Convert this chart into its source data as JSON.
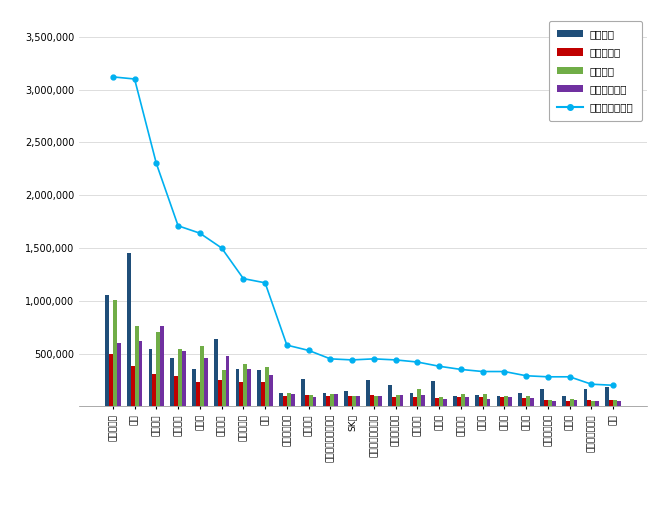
{
  "categories": [
    "힐스테이트",
    "자이",
    "푸르지오",
    "아이파크",
    "래미안",
    "롯데캐슬",
    "한화포레나",
    "디샹",
    "시티스케이프",
    "디에이치",
    "한양수자인디에스틴",
    "SK뷰",
    "한화한양디에스틴",
    "한양디에스틴",
    "호반써밋",
    "우미린",
    "센트레빌",
    "리슈빌",
    "코오롱",
    "데시앙",
    "부산오션시티",
    "스위체",
    "남양미건다구월",
    "위파"
  ],
  "참여지수": [
    1050000,
    1450000,
    540000,
    460000,
    350000,
    640000,
    350000,
    340000,
    130000,
    260000,
    130000,
    150000,
    250000,
    200000,
    130000,
    240000,
    100000,
    110000,
    100000,
    130000,
    160000,
    100000,
    160000,
    180000
  ],
  "미디어지수": [
    500000,
    380000,
    310000,
    290000,
    230000,
    250000,
    235000,
    230000,
    100000,
    105000,
    95000,
    100000,
    105000,
    85000,
    85000,
    80000,
    90000,
    85000,
    85000,
    80000,
    60000,
    55000,
    60000,
    60000
  ],
  "소통지수": [
    1010000,
    760000,
    700000,
    540000,
    575000,
    340000,
    400000,
    370000,
    130000,
    110000,
    115000,
    95000,
    100000,
    105000,
    160000,
    90000,
    115000,
    120000,
    100000,
    95000,
    65000,
    70000,
    55000,
    60000
  ],
  "커뮤니티지수": [
    600000,
    620000,
    760000,
    520000,
    460000,
    480000,
    350000,
    300000,
    120000,
    90000,
    120000,
    95000,
    95000,
    110000,
    110000,
    70000,
    85000,
    70000,
    90000,
    75000,
    55000,
    65000,
    50000,
    50000
  ],
  "브랜드평판지수": [
    3120000,
    3100000,
    2300000,
    1710000,
    1640000,
    1500000,
    1210000,
    1170000,
    580000,
    530000,
    450000,
    440000,
    450000,
    440000,
    420000,
    380000,
    350000,
    330000,
    330000,
    290000,
    280000,
    280000,
    210000,
    200000
  ],
  "bar_colors": [
    "#1f4e79",
    "#c00000",
    "#70ad47",
    "#7030a0"
  ],
  "line_color": "#00b0f0",
  "background_color": "#ffffff",
  "ylim": [
    0,
    3700000
  ],
  "yticks": [
    500000,
    1000000,
    1500000,
    2000000,
    2500000,
    3000000,
    3500000
  ],
  "legend_labels": [
    "참여지수",
    "미디어지수",
    "소통지수",
    "커뮤니티지수",
    "브랜드평판지수"
  ]
}
